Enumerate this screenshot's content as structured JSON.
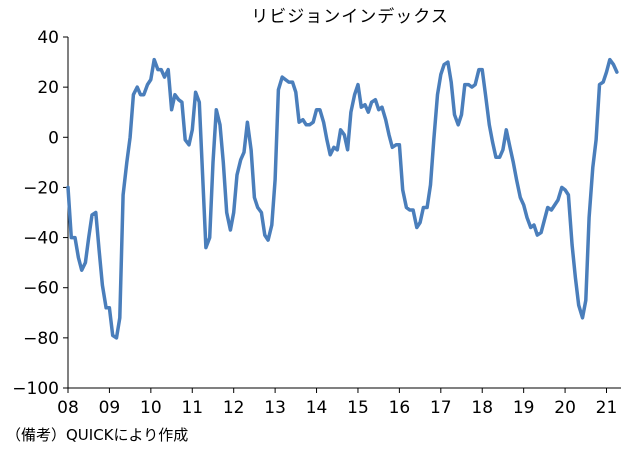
{
  "chart_data": {
    "type": "line",
    "title": "リビジョンインデックス",
    "xlabel": "",
    "ylabel": "",
    "ylim": [
      -100,
      40
    ],
    "yticks": [
      -100,
      -80,
      -60,
      -40,
      -20,
      0,
      20,
      40
    ],
    "ytick_labels": [
      "−100",
      "−80",
      "−60",
      "−40",
      "−20",
      "0",
      "20",
      "40"
    ],
    "xtick_labels": [
      "08",
      "09",
      "10",
      "11",
      "12",
      "13",
      "14",
      "15",
      "16",
      "17",
      "18",
      "19",
      "20",
      "21"
    ],
    "x_start_year": 2008,
    "x_end_year": 2021.35,
    "grid": false,
    "legend": "none",
    "line_color": "#4a7ebb",
    "series": [
      {
        "values": [
          [
            2008.0,
            -20
          ],
          [
            2008.08,
            -40
          ],
          [
            2008.17,
            -40
          ],
          [
            2008.25,
            -48
          ],
          [
            2008.33,
            -53
          ],
          [
            2008.42,
            -50
          ],
          [
            2008.5,
            -40
          ],
          [
            2008.58,
            -31
          ],
          [
            2008.67,
            -30
          ],
          [
            2008.75,
            -45
          ],
          [
            2008.83,
            -59
          ],
          [
            2008.92,
            -68
          ],
          [
            2009.0,
            -68
          ],
          [
            2009.08,
            -79
          ],
          [
            2009.17,
            -80
          ],
          [
            2009.25,
            -72
          ],
          [
            2009.33,
            -23
          ],
          [
            2009.42,
            -10
          ],
          [
            2009.5,
            0
          ],
          [
            2009.58,
            17
          ],
          [
            2009.67,
            20
          ],
          [
            2009.75,
            17
          ],
          [
            2009.83,
            17
          ],
          [
            2009.92,
            21
          ],
          [
            2010.0,
            23
          ],
          [
            2010.08,
            31
          ],
          [
            2010.17,
            27
          ],
          [
            2010.25,
            27
          ],
          [
            2010.33,
            24
          ],
          [
            2010.42,
            27
          ],
          [
            2010.5,
            11
          ],
          [
            2010.58,
            17
          ],
          [
            2010.67,
            15
          ],
          [
            2010.75,
            14
          ],
          [
            2010.83,
            -1
          ],
          [
            2010.92,
            -3
          ],
          [
            2011.0,
            3
          ],
          [
            2011.08,
            18
          ],
          [
            2011.17,
            14
          ],
          [
            2011.25,
            -15
          ],
          [
            2011.33,
            -44
          ],
          [
            2011.42,
            -40
          ],
          [
            2011.5,
            -10
          ],
          [
            2011.58,
            11
          ],
          [
            2011.67,
            5
          ],
          [
            2011.75,
            -10
          ],
          [
            2011.83,
            -30
          ],
          [
            2011.92,
            -37
          ],
          [
            2012.0,
            -30
          ],
          [
            2012.08,
            -15
          ],
          [
            2012.17,
            -9
          ],
          [
            2012.25,
            -6
          ],
          [
            2012.33,
            6
          ],
          [
            2012.42,
            -5
          ],
          [
            2012.5,
            -24
          ],
          [
            2012.58,
            -28
          ],
          [
            2012.67,
            -30
          ],
          [
            2012.75,
            -39
          ],
          [
            2012.83,
            -41
          ],
          [
            2012.92,
            -35
          ],
          [
            2013.0,
            -17
          ],
          [
            2013.08,
            19
          ],
          [
            2013.17,
            24
          ],
          [
            2013.25,
            23
          ],
          [
            2013.33,
            22
          ],
          [
            2013.42,
            22
          ],
          [
            2013.5,
            18
          ],
          [
            2013.58,
            6
          ],
          [
            2013.67,
            7
          ],
          [
            2013.75,
            5
          ],
          [
            2013.83,
            5
          ],
          [
            2013.92,
            6
          ],
          [
            2014.0,
            11
          ],
          [
            2014.08,
            11
          ],
          [
            2014.17,
            6
          ],
          [
            2014.25,
            -1
          ],
          [
            2014.33,
            -7
          ],
          [
            2014.42,
            -4
          ],
          [
            2014.5,
            -5
          ],
          [
            2014.58,
            3
          ],
          [
            2014.67,
            1
          ],
          [
            2014.75,
            -5
          ],
          [
            2014.83,
            10
          ],
          [
            2014.92,
            17
          ],
          [
            2015.0,
            21
          ],
          [
            2015.08,
            12
          ],
          [
            2015.17,
            13
          ],
          [
            2015.25,
            10
          ],
          [
            2015.33,
            14
          ],
          [
            2015.42,
            15
          ],
          [
            2015.5,
            11
          ],
          [
            2015.58,
            12
          ],
          [
            2015.67,
            7
          ],
          [
            2015.75,
            1
          ],
          [
            2015.83,
            -4
          ],
          [
            2015.92,
            -3
          ],
          [
            2016.0,
            -3
          ],
          [
            2016.08,
            -21
          ],
          [
            2016.17,
            -28
          ],
          [
            2016.25,
            -29
          ],
          [
            2016.33,
            -29
          ],
          [
            2016.42,
            -36
          ],
          [
            2016.5,
            -34
          ],
          [
            2016.58,
            -28
          ],
          [
            2016.67,
            -28
          ],
          [
            2016.75,
            -19
          ],
          [
            2016.83,
            -1
          ],
          [
            2016.92,
            17
          ],
          [
            2017.0,
            25
          ],
          [
            2017.08,
            29
          ],
          [
            2017.17,
            30
          ],
          [
            2017.25,
            22
          ],
          [
            2017.33,
            9
          ],
          [
            2017.42,
            5
          ],
          [
            2017.5,
            9
          ],
          [
            2017.58,
            21
          ],
          [
            2017.67,
            21
          ],
          [
            2017.75,
            20
          ],
          [
            2017.83,
            21
          ],
          [
            2017.92,
            27
          ],
          [
            2018.0,
            27
          ],
          [
            2018.08,
            17
          ],
          [
            2018.17,
            5
          ],
          [
            2018.25,
            -2
          ],
          [
            2018.33,
            -8
          ],
          [
            2018.42,
            -8
          ],
          [
            2018.5,
            -5
          ],
          [
            2018.58,
            3
          ],
          [
            2018.67,
            -4
          ],
          [
            2018.75,
            -10
          ],
          [
            2018.83,
            -17
          ],
          [
            2018.92,
            -24
          ],
          [
            2019.0,
            -27
          ],
          [
            2019.08,
            -32
          ],
          [
            2019.17,
            -36
          ],
          [
            2019.25,
            -35
          ],
          [
            2019.33,
            -39
          ],
          [
            2019.42,
            -38
          ],
          [
            2019.5,
            -33
          ],
          [
            2019.58,
            -28
          ],
          [
            2019.67,
            -29
          ],
          [
            2019.75,
            -27
          ],
          [
            2019.83,
            -25
          ],
          [
            2019.92,
            -20
          ],
          [
            2020.0,
            -21
          ],
          [
            2020.08,
            -23
          ],
          [
            2020.17,
            -43
          ],
          [
            2020.25,
            -56
          ],
          [
            2020.33,
            -67
          ],
          [
            2020.42,
            -72
          ],
          [
            2020.5,
            -65
          ],
          [
            2020.58,
            -32
          ],
          [
            2020.67,
            -12
          ],
          [
            2020.75,
            -1
          ],
          [
            2020.83,
            21
          ],
          [
            2020.92,
            22
          ],
          [
            2021.0,
            26
          ],
          [
            2021.08,
            31
          ],
          [
            2021.17,
            29
          ],
          [
            2021.25,
            26
          ]
        ]
      }
    ]
  },
  "note": "（備考）QUICKにより作成"
}
